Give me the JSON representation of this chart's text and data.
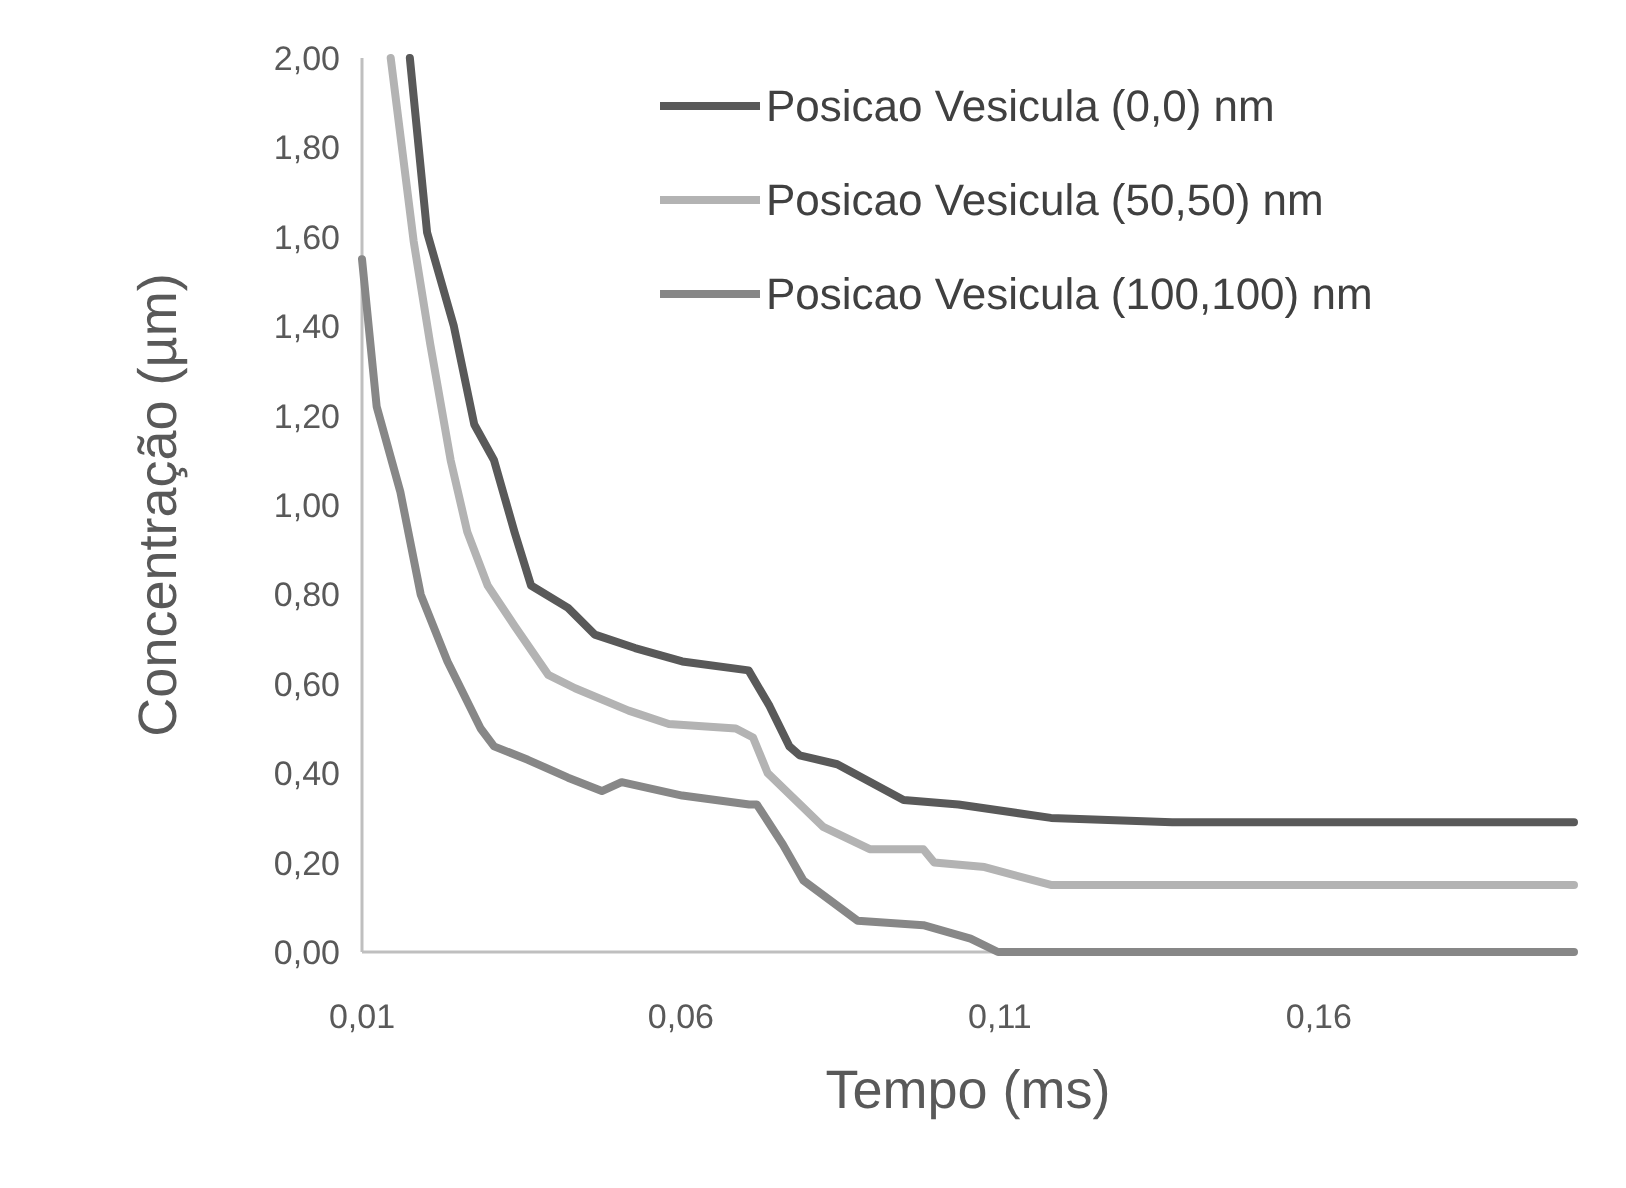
{
  "chart_data": {
    "type": "line",
    "xlabel": "Tempo  (ms)",
    "ylabel": "Concentração  (µm)",
    "xlim": [
      0.01,
      0.2
    ],
    "ylim": [
      0,
      2
    ],
    "xticks": [
      {
        "value": 0.01,
        "label": "0,01"
      },
      {
        "value": 0.06,
        "label": "0,06"
      },
      {
        "value": 0.11,
        "label": "0,11"
      },
      {
        "value": 0.16,
        "label": "0,16"
      }
    ],
    "yticks": [
      {
        "value": 0,
        "label": "0,00"
      },
      {
        "value": 0.2,
        "label": "0,20"
      },
      {
        "value": 0.4,
        "label": "0,40"
      },
      {
        "value": 0.6,
        "label": "0,60"
      },
      {
        "value": 0.8,
        "label": "0,80"
      },
      {
        "value": 1,
        "label": "1,00"
      },
      {
        "value": 1.2,
        "label": "1,20"
      },
      {
        "value": 1.4,
        "label": "1,40"
      },
      {
        "value": 1.6,
        "label": "1,60"
      },
      {
        "value": 1.8,
        "label": "1,80"
      },
      {
        "value": 2,
        "label": "2,00"
      }
    ],
    "grid": false,
    "legend": "top right",
    "marker": "none",
    "line_style": "solid",
    "series": [
      {
        "name": "Posicao Vesicula (0,0) nm",
        "color": "#595959",
        "x": [
          0.0175,
          0.0202,
          0.0244,
          0.0276,
          0.0307,
          0.0339,
          0.0365,
          0.0423,
          0.0465,
          0.0528,
          0.0602,
          0.0706,
          0.0739,
          0.077,
          0.0786,
          0.0845,
          0.0949,
          0.1035,
          0.118,
          0.137,
          0.2
        ],
        "values": [
          2.0,
          1.61,
          1.4,
          1.18,
          1.1,
          0.94,
          0.82,
          0.77,
          0.71,
          0.68,
          0.65,
          0.63,
          0.55,
          0.46,
          0.44,
          0.42,
          0.34,
          0.33,
          0.3,
          0.29,
          0.29
        ]
      },
      {
        "name": "Posicao Vesicula (50,50) nm",
        "color": "#b3b3b3",
        "x": [
          0.0145,
          0.0181,
          0.0207,
          0.0239,
          0.0265,
          0.0297,
          0.0339,
          0.0392,
          0.0434,
          0.0518,
          0.0581,
          0.0686,
          0.0713,
          0.0736,
          0.0823,
          0.0896,
          0.098,
          0.0997,
          0.1076,
          0.118,
          0.137,
          0.2
        ],
        "values": [
          2.0,
          1.59,
          1.36,
          1.1,
          0.94,
          0.82,
          0.73,
          0.62,
          0.59,
          0.54,
          0.51,
          0.5,
          0.48,
          0.4,
          0.28,
          0.23,
          0.23,
          0.2,
          0.19,
          0.15,
          0.15,
          0.15
        ]
      },
      {
        "name": "Posicao Vesicula (100,100) nm",
        "color": "#878787",
        "x": [
          0.01,
          0.0123,
          0.016,
          0.0192,
          0.0234,
          0.0286,
          0.0307,
          0.036,
          0.0423,
          0.0476,
          0.0507,
          0.0602,
          0.0707,
          0.0719,
          0.076,
          0.0792,
          0.0877,
          0.098,
          0.1054,
          0.1097,
          0.2
        ],
        "values": [
          1.55,
          1.22,
          1.03,
          0.8,
          0.65,
          0.5,
          0.46,
          0.43,
          0.39,
          0.36,
          0.38,
          0.35,
          0.33,
          0.33,
          0.24,
          0.16,
          0.07,
          0.06,
          0.03,
          0.0,
          0.0
        ]
      }
    ]
  }
}
